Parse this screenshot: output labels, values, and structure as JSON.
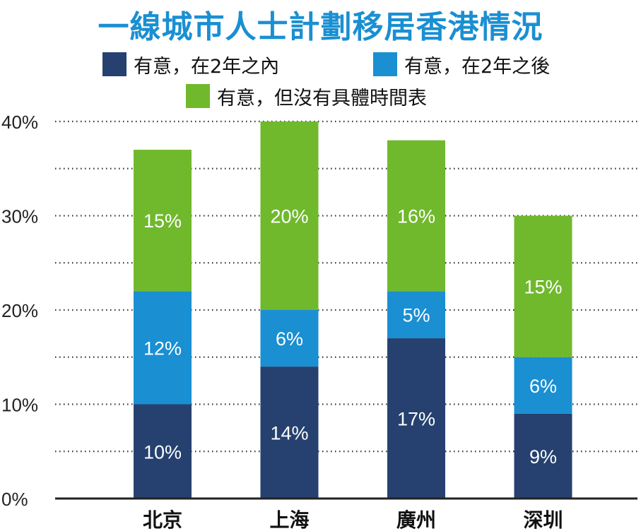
{
  "colors": {
    "title": "#1a8fd2",
    "series": [
      "#26416f",
      "#1a8fd2",
      "#70b92d"
    ]
  },
  "chart_data": {
    "type": "bar",
    "stacked": true,
    "title": "一線城市人士計劃移居香港情況",
    "categories": [
      "北京",
      "上海",
      "廣州",
      "深圳"
    ],
    "series": [
      {
        "name": "有意，在2年之內",
        "values": [
          10,
          14,
          17,
          9
        ],
        "labels": [
          "10%",
          "14%",
          "17%",
          "9%"
        ]
      },
      {
        "name": "有意，在2年之後",
        "values": [
          12,
          6,
          5,
          6
        ],
        "labels": [
          "12%",
          "6%",
          "5%",
          "6%"
        ]
      },
      {
        "name": "有意，但沒有具體時間表",
        "values": [
          15,
          20,
          16,
          15
        ],
        "labels": [
          "15%",
          "20%",
          "16%",
          "15%"
        ]
      }
    ],
    "ylim": [
      0,
      40
    ],
    "yticks": [
      "0%",
      "10%",
      "20%",
      "30%",
      "40%"
    ],
    "grid": true,
    "legend_position": "top"
  }
}
